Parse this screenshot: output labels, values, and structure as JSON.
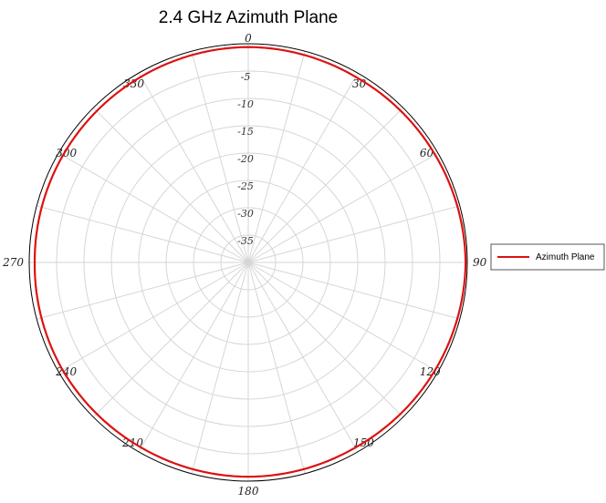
{
  "colors": {
    "series": "#dd1111",
    "grid": "#d6d6d6",
    "outer_ring": "#000000",
    "background": "#ffffff"
  },
  "chart_data": {
    "type": "line",
    "coordinate_system": "polar",
    "title": "2.4 GHz Azimuth Plane",
    "angle_ticks": [
      "0",
      "30",
      "60",
      "90",
      "120",
      "150",
      "180",
      "210",
      "240",
      "270",
      "300",
      "330"
    ],
    "radial_tick_labels": [
      "-5",
      "-10",
      "-15",
      "-20",
      "-25",
      "-30",
      "-35"
    ],
    "radial_range": [
      -40,
      0
    ],
    "grid": true,
    "legend_position": "right",
    "series": [
      {
        "name": "Azimuth Plane",
        "angles_deg": [
          0,
          30,
          60,
          90,
          120,
          150,
          180,
          210,
          240,
          270,
          300,
          330,
          360
        ],
        "values_db": [
          -0.6,
          -0.8,
          -0.6,
          -0.3,
          -0.6,
          -0.9,
          -0.8,
          -0.9,
          -0.8,
          -1.0,
          -0.9,
          -0.8,
          -0.6
        ]
      }
    ]
  }
}
